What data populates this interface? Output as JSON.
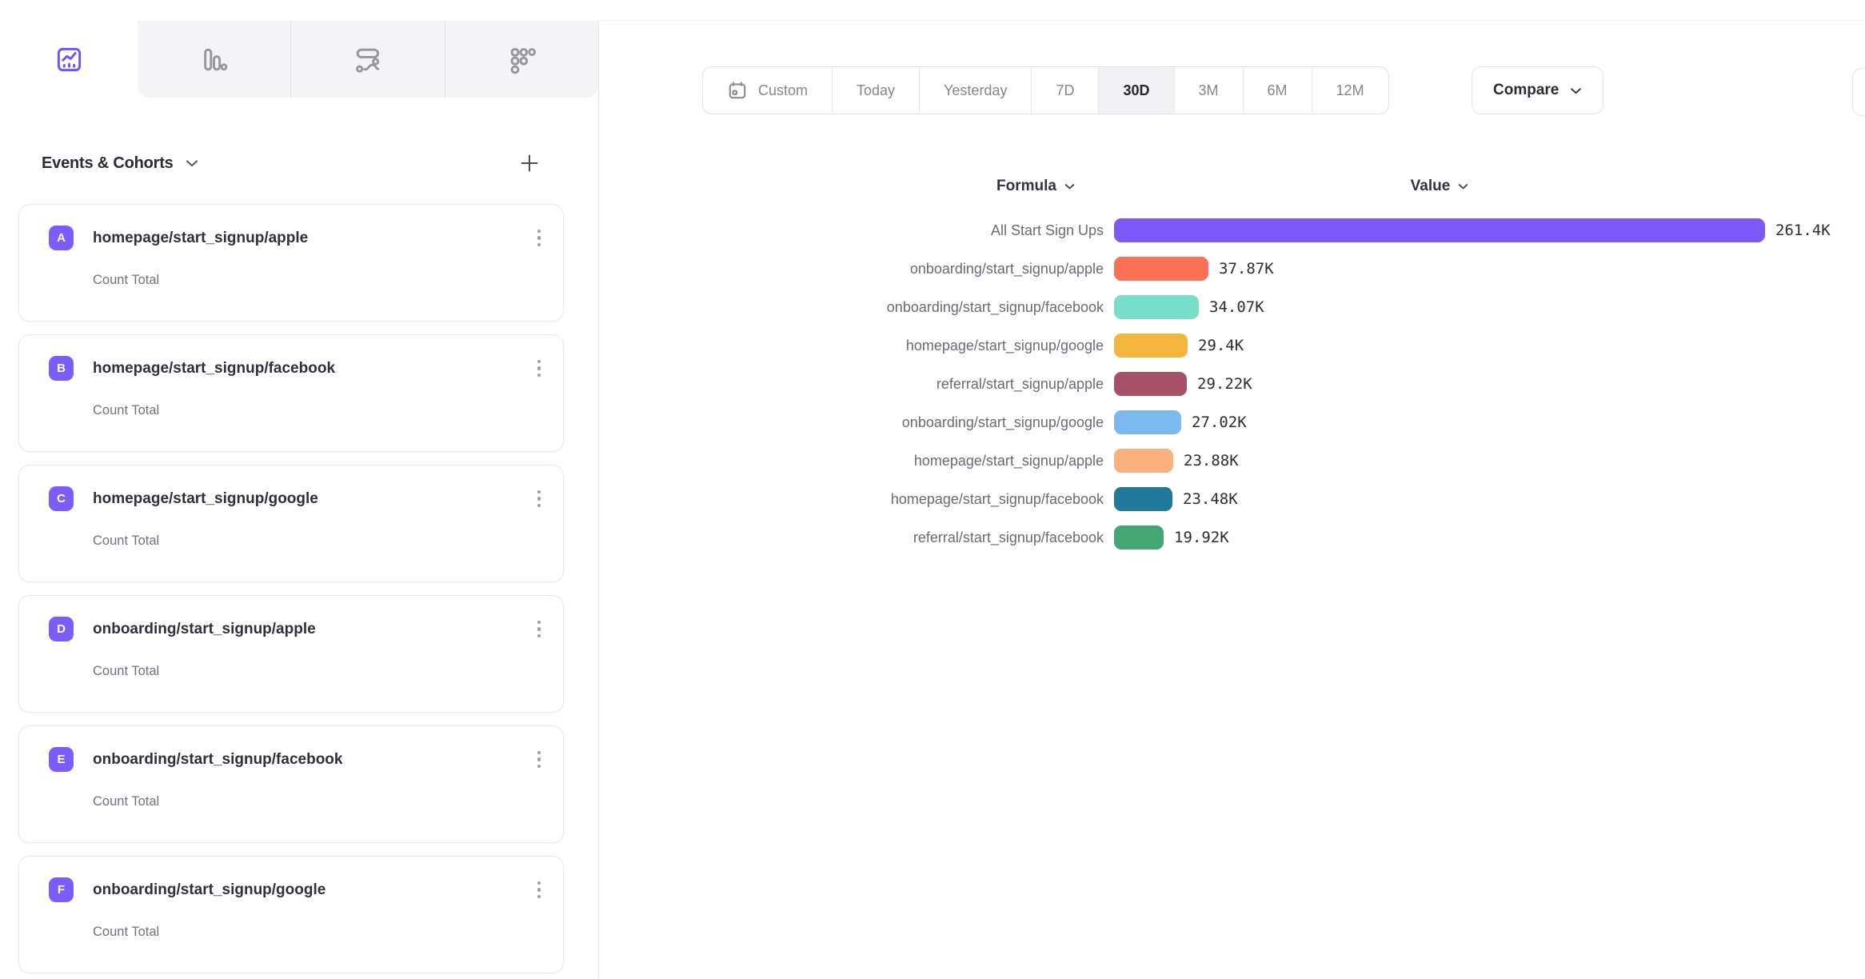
{
  "accent_color": "#7c5cfc",
  "tabs": [
    {
      "icon": "line-chart-icon",
      "active": true
    },
    {
      "icon": "bar-chart-icon",
      "active": false
    },
    {
      "icon": "flows-icon",
      "active": false
    },
    {
      "icon": "retention-icon",
      "active": false
    }
  ],
  "sidebar": {
    "section_title": "Events & Cohorts",
    "add_icon": "plus-icon",
    "items": [
      {
        "letter": "A",
        "title": "homepage/start_signup/apple",
        "subtitle": "Count Total"
      },
      {
        "letter": "B",
        "title": "homepage/start_signup/facebook",
        "subtitle": "Count Total"
      },
      {
        "letter": "C",
        "title": "homepage/start_signup/google",
        "subtitle": "Count Total"
      },
      {
        "letter": "D",
        "title": "onboarding/start_signup/apple",
        "subtitle": "Count Total"
      },
      {
        "letter": "E",
        "title": "onboarding/start_signup/facebook",
        "subtitle": "Count Total"
      },
      {
        "letter": "F",
        "title": "onboarding/start_signup/google",
        "subtitle": "Count Total"
      }
    ]
  },
  "date_controls": {
    "options": [
      "Custom",
      "Today",
      "Yesterday",
      "7D",
      "30D",
      "3M",
      "6M",
      "12M"
    ],
    "selected": "30D",
    "custom_icon": "calendar-icon",
    "compare_label": "Compare"
  },
  "chart_data": {
    "type": "bar",
    "orientation": "horizontal",
    "columns": {
      "formula": "Formula",
      "value": "Value"
    },
    "values_unit": "K",
    "max_value_k": 261.4,
    "rows": [
      {
        "label": "All Start Sign Ups",
        "value_k": 261.4,
        "display": "261.4K",
        "color": "#7A58F9"
      },
      {
        "label": "onboarding/start_signup/apple",
        "value_k": 37.87,
        "display": "37.87K",
        "color": "#F97054"
      },
      {
        "label": "onboarding/start_signup/facebook",
        "value_k": 34.07,
        "display": "34.07K",
        "color": "#78DFCA"
      },
      {
        "label": "homepage/start_signup/google",
        "value_k": 29.4,
        "display": "29.4K",
        "color": "#F4B53C"
      },
      {
        "label": "referral/start_signup/apple",
        "value_k": 29.22,
        "display": "29.22K",
        "color": "#A75166"
      },
      {
        "label": "onboarding/start_signup/google",
        "value_k": 27.02,
        "display": "27.02K",
        "color": "#7BB9F0"
      },
      {
        "label": "homepage/start_signup/apple",
        "value_k": 23.88,
        "display": "23.88K",
        "color": "#FBB17D"
      },
      {
        "label": "homepage/start_signup/facebook",
        "value_k": 23.48,
        "display": "23.48K",
        "color": "#20789A"
      },
      {
        "label": "referral/start_signup/facebook",
        "value_k": 19.92,
        "display": "19.92K",
        "color": "#43A673"
      }
    ]
  }
}
